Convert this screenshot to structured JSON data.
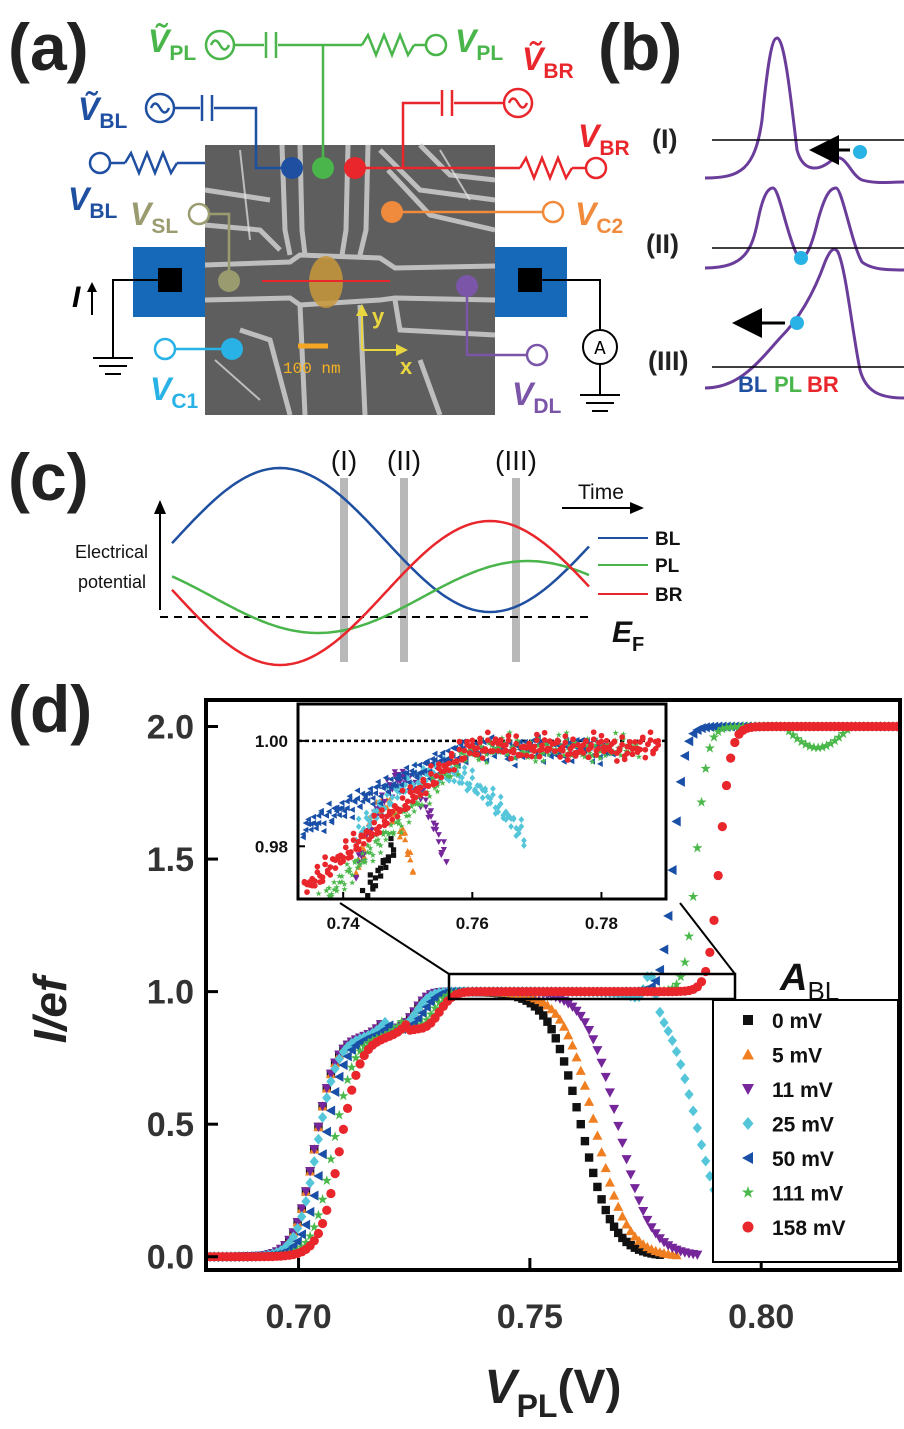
{
  "panels": {
    "a": "(a)",
    "b": "(b)",
    "c": "(c)",
    "d": "(d)"
  },
  "colors": {
    "BL": "#1f4fa0",
    "PL": "#49b54a",
    "BR": "#e8262b",
    "SL": "#9b9b70",
    "C1": "#29b2e6",
    "C2": "#f08a3c",
    "DL": "#7b55a8",
    "gate": "#1668b8"
  },
  "panel_a": {
    "labels": {
      "vpl_ac": "Ṽ",
      "vpl_ac_sub": "PL",
      "vpl": "V",
      "vpl_sub": "PL",
      "vbr_ac": "Ṽ",
      "vbr_ac_sub": "BR",
      "vbl_ac": "Ṽ",
      "vbl_ac_sub": "BL",
      "vbr": "V",
      "vbr_sub": "BR",
      "vbl": "V",
      "vbl_sub": "BL",
      "vsl": "V",
      "vsl_sub": "SL",
      "vc2": "V",
      "vc2_sub": "C2",
      "vc1": "V",
      "vc1_sub": "C1",
      "vdl": "V",
      "vdl_sub": "DL",
      "current": "I",
      "ammeter": "A",
      "scale": "100 nm",
      "axis_x": "x",
      "axis_y": "y"
    }
  },
  "panel_b": {
    "rows": [
      "(I)",
      "(II)",
      "(III)"
    ],
    "gates": [
      "BL",
      "PL",
      "BR"
    ]
  },
  "panel_c": {
    "time_label": "Time",
    "ylabel_line1": "Electrical",
    "ylabel_line2": "potential",
    "markers": [
      "(I)",
      "(II)",
      "(III)"
    ],
    "legend": [
      "BL",
      "PL",
      "BR"
    ],
    "ef": "E",
    "ef_sub": "F"
  },
  "chart_data": {
    "type": "scatter",
    "xlabel": "V",
    "xlabel_sub": "PL",
    "xlabel_unit": "(V)",
    "ylabel": "I/ef",
    "xlim": [
      0.68,
      0.83
    ],
    "ylim": [
      -0.05,
      2.1
    ],
    "x_ticks": [
      "0.70",
      "0.75",
      "0.80"
    ],
    "y_ticks": [
      "0.0",
      "0.5",
      "1.0",
      "1.5",
      "2.0"
    ],
    "legend_title": "A",
    "legend_title_sub": "BL",
    "series": [
      {
        "name": "0 mV",
        "color": "#111111",
        "marker": "square",
        "rise": 0.7035,
        "fall": 0.761,
        "level2": null
      },
      {
        "name": "5 mV",
        "color": "#f07f22",
        "marker": "triangle-up",
        "rise": 0.7035,
        "fall": 0.764,
        "level2": null
      },
      {
        "name": "11 mV",
        "color": "#76269b",
        "marker": "triangle-down",
        "rise": 0.7035,
        "fall": 0.769,
        "level2": null
      },
      {
        "name": "25 mV",
        "color": "#55c6d9",
        "marker": "diamond",
        "rise": 0.704,
        "fall": 0.786,
        "level2": null
      },
      {
        "name": "50 mV",
        "color": "#1a4fa8",
        "marker": "triangle-left",
        "rise": 0.7055,
        "fall": null,
        "level2": 0.781
      },
      {
        "name": "111 mV",
        "color": "#4ab84a",
        "marker": "star",
        "rise": 0.7075,
        "fall": null,
        "level2": 0.786
      },
      {
        "name": "158 mV",
        "color": "#e8262b",
        "marker": "circle",
        "rise": 0.709,
        "fall": null,
        "level2": 0.791
      }
    ],
    "inset": {
      "xlim": [
        0.733,
        0.79
      ],
      "ylim": [
        0.97,
        1.007
      ],
      "x_ticks": [
        "0.74",
        "0.76",
        "0.78"
      ],
      "y_ticks": [
        "1.00",
        "0.98"
      ]
    }
  }
}
